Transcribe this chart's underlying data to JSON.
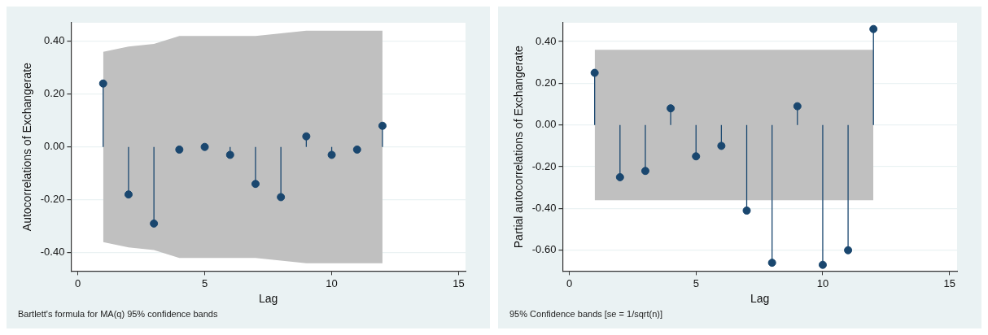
{
  "chart_data": [
    {
      "type": "lollipop",
      "xlabel": "Lag",
      "ylabel": "Autocorrelations of Exchangerate",
      "annotations": [
        "Bartlett's formula for MA(q) 95% confidence bands"
      ],
      "x": [
        1,
        2,
        3,
        4,
        5,
        6,
        7,
        8,
        9,
        10,
        11,
        12
      ],
      "series": [
        {
          "color": "#1a476f",
          "values": [
            0.24,
            -0.18,
            -0.29,
            -0.01,
            0.0,
            -0.03,
            -0.14,
            -0.19,
            0.04,
            -0.03,
            -0.01,
            0.08
          ],
          "lower": [
            -0.36,
            -0.38,
            -0.39,
            -0.42,
            -0.42,
            -0.42,
            -0.42,
            -0.43,
            -0.44,
            -0.44,
            -0.44,
            -0.44
          ],
          "upper": [
            0.36,
            0.38,
            0.39,
            0.42,
            0.42,
            0.42,
            0.42,
            0.43,
            0.44,
            0.44,
            0.44,
            0.44
          ]
        }
      ],
      "xlim": [
        -0.26,
        15.27
      ],
      "xticks": [
        0,
        5,
        10,
        15
      ],
      "ylim": [
        -0.47,
        0.47
      ],
      "yticks": [
        {
          "value": -0.4,
          "label": "-0.40"
        },
        {
          "value": -0.2,
          "label": "-0.20"
        },
        {
          "value": 0,
          "label": "0.00"
        },
        {
          "value": 0.2,
          "label": "0.20"
        },
        {
          "value": 0.4,
          "label": "0.40"
        }
      ],
      "grid": "y",
      "legend": false,
      "marker": "circle"
    },
    {
      "type": "lollipop",
      "xlabel": "Lag",
      "ylabel": "Partial autocorrelations of Exchangerate",
      "annotations": [
        "95% Confidence bands [se = 1/sqrt(n)]"
      ],
      "x": [
        1,
        2,
        3,
        4,
        5,
        6,
        7,
        8,
        9,
        10,
        11,
        12
      ],
      "series": [
        {
          "color": "#1a476f",
          "values": [
            0.25,
            -0.25,
            -0.22,
            0.08,
            -0.15,
            -0.1,
            -0.41,
            -0.66,
            0.09,
            -0.67,
            -0.6,
            0.46
          ],
          "lower": [
            -0.36,
            -0.36,
            -0.36,
            -0.36,
            -0.36,
            -0.36,
            -0.36,
            -0.36,
            -0.36,
            -0.36,
            -0.36,
            -0.36
          ],
          "upper": [
            0.36,
            0.36,
            0.36,
            0.36,
            0.36,
            0.36,
            0.36,
            0.36,
            0.36,
            0.36,
            0.36,
            0.36
          ]
        }
      ],
      "xlim": [
        -0.26,
        15.3
      ],
      "xticks": [
        0,
        5,
        10,
        15
      ],
      "ylim": [
        -0.7,
        0.49
      ],
      "yticks": [
        {
          "value": -0.6,
          "label": "-0.60"
        },
        {
          "value": -0.4,
          "label": "-0.40"
        },
        {
          "value": -0.2,
          "label": "-0.20"
        },
        {
          "value": 0,
          "label": "0.00"
        },
        {
          "value": 0.2,
          "label": "0.20"
        },
        {
          "value": 0.4,
          "label": "0.40"
        }
      ],
      "grid": "y",
      "legend": false,
      "marker": "circle"
    }
  ]
}
